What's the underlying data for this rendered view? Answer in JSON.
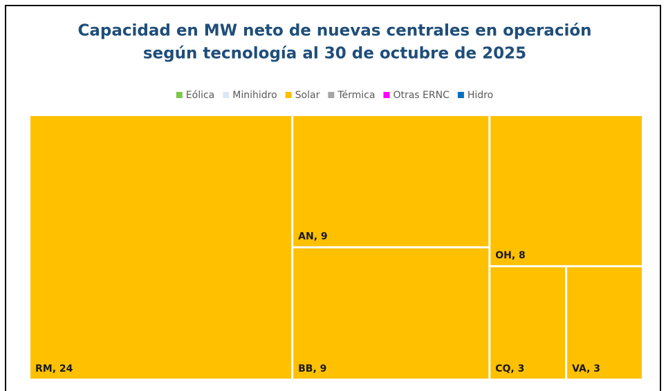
{
  "chart_data": {
    "type": "treemap",
    "title": [
      "Capacidad en MW neto de nuevas centrales en operación",
      "según tecnología al 30 de octubre de 2025"
    ],
    "legend": [
      {
        "name": "Eólica",
        "color": "#7cc84a"
      },
      {
        "name": "Minihidro",
        "color": "#dce7f5"
      },
      {
        "name": "Solar",
        "color": "#ffc000"
      },
      {
        "name": "Térmica",
        "color": "#a5a5a5"
      },
      {
        "name": "Otras ERNC",
        "color": "#ff00ff"
      },
      {
        "name": "Hidro",
        "color": "#0070c0"
      }
    ],
    "color": "#ffc000",
    "values": [
      24,
      9,
      9,
      8,
      3,
      3
    ],
    "value_labels": [
      "RM, 24",
      "AN, 9",
      "BB, 9",
      "OH, 8",
      "CQ, 3",
      "VA, 3"
    ]
  }
}
